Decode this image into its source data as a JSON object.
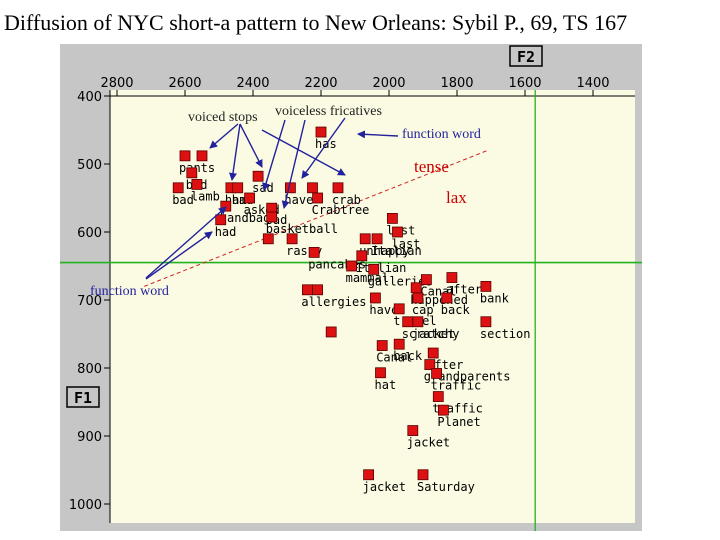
{
  "slide_title": "Diffusion of NYC short-a pattern to New Orleans: Sybil P., 69, TS 167",
  "chart_data": {
    "type": "scatter",
    "x_axis_name": "F2",
    "y_axis_name": "F1",
    "x_range": [
      2900,
      1200
    ],
    "y_range": [
      390,
      1040
    ],
    "x_reversed": true,
    "y_reversed": true,
    "x_ticks": [
      2800,
      2600,
      2400,
      2200,
      2000,
      1800,
      1600,
      1400
    ],
    "y_ticks": [
      400,
      500,
      600,
      700,
      800,
      900,
      1000
    ],
    "grid": false,
    "colors": {
      "plot_background": "#fbfbe3",
      "outer_background": "#c6c6c6",
      "marker": "#dd1111",
      "reference_line": "#22b222",
      "divider_line": "#cc2222",
      "annotation_arrow": "#22229c",
      "tense_lax_text": "#cc0000"
    },
    "reference_lines": [
      {
        "orientation": "vertical",
        "f2": 1570
      },
      {
        "orientation": "horizontal",
        "f1": 645
      }
    ],
    "divider": {
      "from": {
        "f2": 2720,
        "f1": 680
      },
      "to": {
        "f2": 1710,
        "f1": 480
      }
    },
    "points": [
      {
        "label": "has",
        "f2": 2200,
        "f1": 453
      },
      {
        "label": "pants",
        "f2": 2600,
        "f1": 488
      },
      {
        "label": "",
        "f2": 2550,
        "f1": 488
      },
      {
        "label": "bad",
        "f2": 2580,
        "f1": 513
      },
      {
        "label": "lamb",
        "f2": 2565,
        "f1": 530
      },
      {
        "label": "bad",
        "f2": 2620,
        "f1": 535
      },
      {
        "label": "ham",
        "f2": 2465,
        "f1": 535
      },
      {
        "label": "had",
        "f2": 2445,
        "f1": 535
      },
      {
        "label": "handbag",
        "f2": 2480,
        "f1": 562
      },
      {
        "label": "had",
        "f2": 2495,
        "f1": 582
      },
      {
        "label": "sad",
        "f2": 2385,
        "f1": 518
      },
      {
        "label": "have",
        "f2": 2290,
        "f1": 535
      },
      {
        "label": "",
        "f2": 2225,
        "f1": 535
      },
      {
        "label": "crab",
        "f2": 2150,
        "f1": 535
      },
      {
        "label": "asked",
        "f2": 2410,
        "f1": 550
      },
      {
        "label": "sad",
        "f2": 2345,
        "f1": 565
      },
      {
        "label": "basketball",
        "f2": 2345,
        "f1": 578
      },
      {
        "label": "Crabtree",
        "f2": 2210,
        "f1": 550
      },
      {
        "label": "raspy",
        "f2": 2285,
        "f1": 610
      },
      {
        "label": "",
        "f2": 2355,
        "f1": 610
      },
      {
        "label": "pancakes",
        "f2": 2220,
        "f1": 630
      },
      {
        "label": "unhappy",
        "f2": 2070,
        "f1": 610
      },
      {
        "label": "Italian",
        "f2": 2035,
        "f1": 610
      },
      {
        "label": "Italian",
        "f2": 2080,
        "f1": 635
      },
      {
        "label": "mammal",
        "f2": 2110,
        "f1": 650
      },
      {
        "label": "galleries",
        "f2": 2045,
        "f1": 655
      },
      {
        "label": "last",
        "f2": 1990,
        "f1": 580
      },
      {
        "label": "last",
        "f2": 1975,
        "f1": 600
      },
      {
        "label": "Canal",
        "f2": 1890,
        "f1": 670
      },
      {
        "label": "after",
        "f2": 1815,
        "f1": 667
      },
      {
        "label": "bank",
        "f2": 1715,
        "f1": 680
      },
      {
        "label": "happened",
        "f2": 1920,
        "f1": 682
      },
      {
        "label": "allergies",
        "f2": 2240,
        "f1": 685
      },
      {
        "label": "",
        "f2": 2210,
        "f1": 685
      },
      {
        "label": "have",
        "f2": 2040,
        "f1": 697
      },
      {
        "label": "cap",
        "f2": 1915,
        "f1": 697
      },
      {
        "label": "back",
        "f2": 1830,
        "f1": 697
      },
      {
        "label": "travel",
        "f2": 1970,
        "f1": 713
      },
      {
        "label": "scratchy",
        "f2": 1945,
        "f1": 732
      },
      {
        "label": "jacket",
        "f2": 1915,
        "f1": 732
      },
      {
        "label": "section",
        "f2": 1715,
        "f1": 732
      },
      {
        "label": "",
        "f2": 2170,
        "f1": 747
      },
      {
        "label": "Canal",
        "f2": 2020,
        "f1": 767
      },
      {
        "label": "back",
        "f2": 1970,
        "f1": 765
      },
      {
        "label": "after",
        "f2": 1870,
        "f1": 778
      },
      {
        "label": "grandparents",
        "f2": 1880,
        "f1": 795
      },
      {
        "label": "hat",
        "f2": 2025,
        "f1": 807
      },
      {
        "label": "traffic",
        "f2": 1860,
        "f1": 808
      },
      {
        "label": "traffic",
        "f2": 1855,
        "f1": 842
      },
      {
        "label": "Planet",
        "f2": 1840,
        "f1": 862
      },
      {
        "label": "jacket",
        "f2": 1930,
        "f1": 892
      },
      {
        "label": "jacket",
        "f2": 2060,
        "f1": 957
      },
      {
        "label": "Saturday",
        "f2": 1900,
        "f1": 957
      }
    ],
    "annotations": [
      {
        "text": "voiced stops",
        "kind": "note"
      },
      {
        "text": "voiceless fricatives",
        "kind": "note"
      },
      {
        "text": "function word",
        "kind": "note"
      },
      {
        "text": "tense",
        "kind": "region"
      },
      {
        "text": "lax",
        "kind": "region"
      },
      {
        "text": "function word",
        "kind": "note"
      }
    ]
  }
}
